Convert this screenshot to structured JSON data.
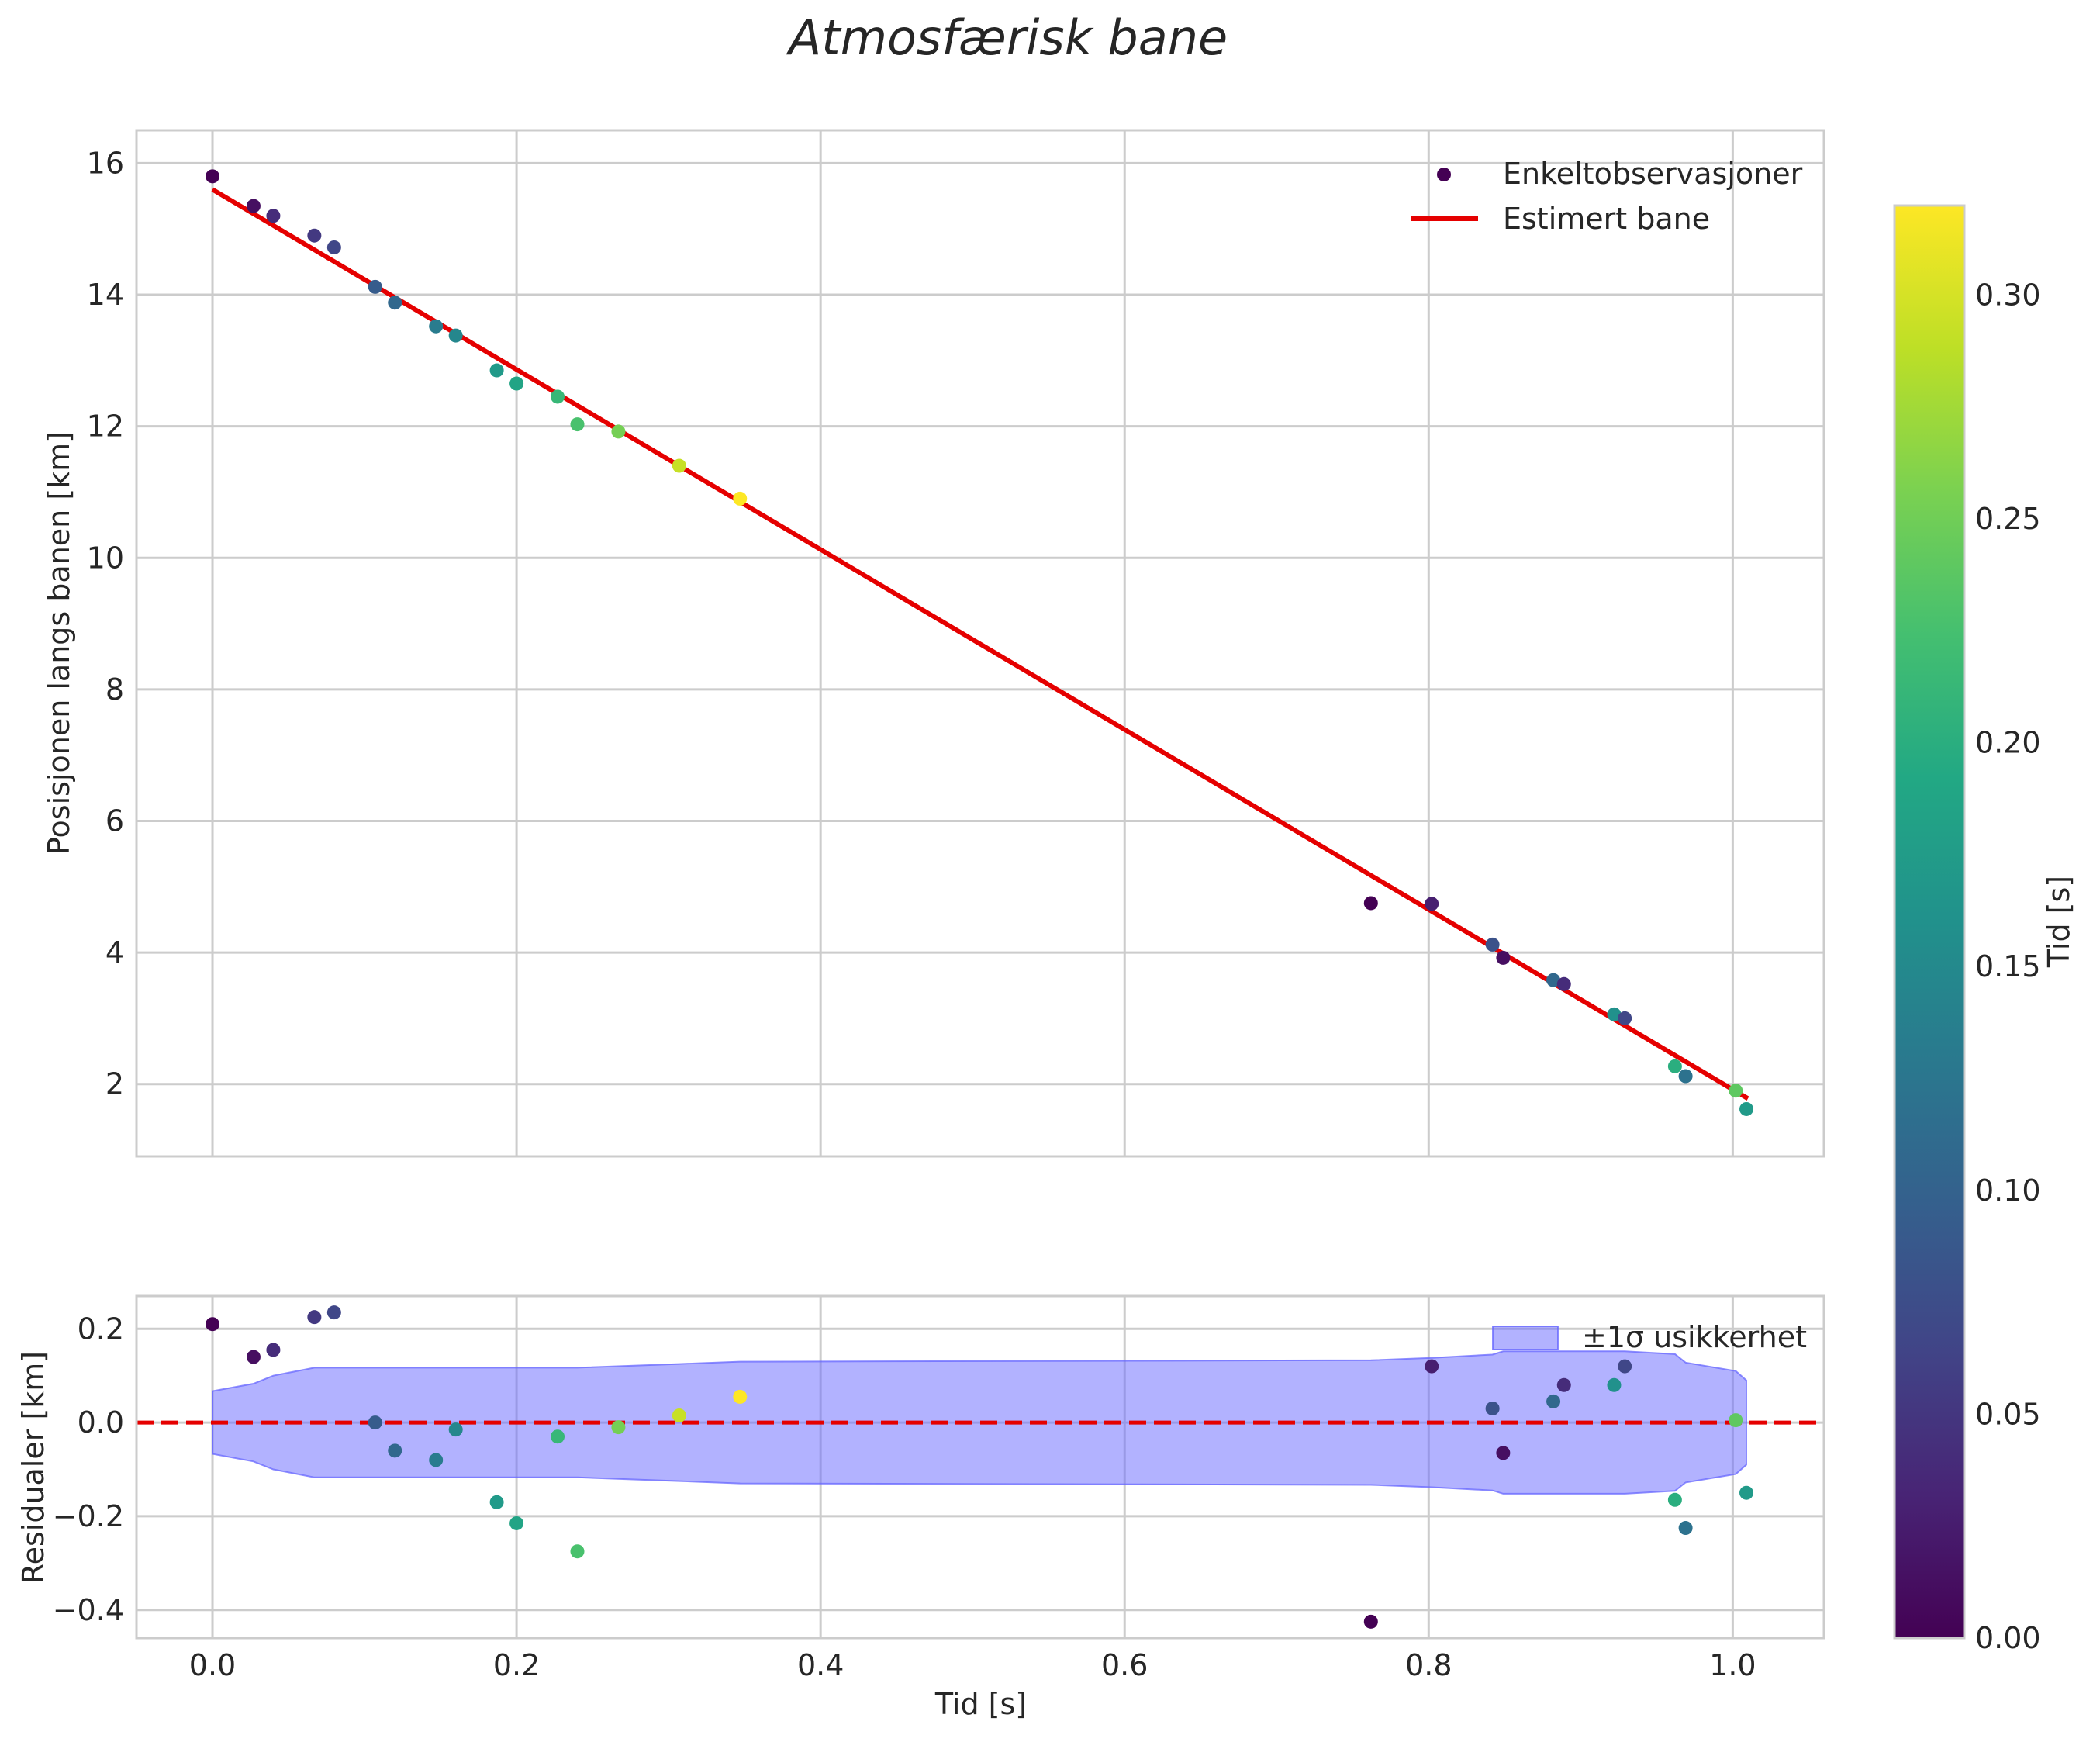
{
  "chart_data": {
    "type": "scatter",
    "title": "Atmosfærisk bane",
    "panels": {
      "main": {
        "ylabel": "Posisjonen langs banen [km]",
        "xlim": [
          -0.05,
          1.06
        ],
        "ylim": [
          0.9,
          16.5
        ],
        "yticks": [
          2,
          4,
          6,
          8,
          10,
          12,
          14,
          16
        ],
        "legend": {
          "position": "top-right",
          "scatter_label": "Enkeltobservasjoner",
          "line_label": "Estimert bane"
        },
        "fit_line": {
          "color": "#e50000",
          "x": [
            0.0,
            1.01
          ],
          "y": [
            15.6,
            1.78
          ]
        },
        "points": [
          {
            "t": 0.0,
            "pos": 15.8,
            "c": 0.0
          },
          {
            "t": 0.027,
            "pos": 15.35,
            "c": 0.013
          },
          {
            "t": 0.04,
            "pos": 15.2,
            "c": 0.04
          },
          {
            "t": 0.067,
            "pos": 14.9,
            "c": 0.053
          },
          {
            "t": 0.08,
            "pos": 14.72,
            "c": 0.067
          },
          {
            "t": 0.107,
            "pos": 14.12,
            "c": 0.093
          },
          {
            "t": 0.12,
            "pos": 13.88,
            "c": 0.107
          },
          {
            "t": 0.147,
            "pos": 13.52,
            "c": 0.133
          },
          {
            "t": 0.16,
            "pos": 13.38,
            "c": 0.147
          },
          {
            "t": 0.187,
            "pos": 12.85,
            "c": 0.173
          },
          {
            "t": 0.2,
            "pos": 12.65,
            "c": 0.187
          },
          {
            "t": 0.227,
            "pos": 12.45,
            "c": 0.213
          },
          {
            "t": 0.24,
            "pos": 12.03,
            "c": 0.227
          },
          {
            "t": 0.267,
            "pos": 11.92,
            "c": 0.253
          },
          {
            "t": 0.307,
            "pos": 11.4,
            "c": 0.293
          },
          {
            "t": 0.347,
            "pos": 10.9,
            "c": 0.32
          },
          {
            "t": 0.762,
            "pos": 4.75,
            "c": 0.0
          },
          {
            "t": 0.802,
            "pos": 4.74,
            "c": 0.027
          },
          {
            "t": 0.842,
            "pos": 4.12,
            "c": 0.08
          },
          {
            "t": 0.849,
            "pos": 3.92,
            "c": 0.013
          },
          {
            "t": 0.882,
            "pos": 3.58,
            "c": 0.107
          },
          {
            "t": 0.889,
            "pos": 3.52,
            "c": 0.04
          },
          {
            "t": 0.922,
            "pos": 3.06,
            "c": 0.16
          },
          {
            "t": 0.929,
            "pos": 3.0,
            "c": 0.067
          },
          {
            "t": 0.962,
            "pos": 2.27,
            "c": 0.2
          },
          {
            "t": 0.969,
            "pos": 2.12,
            "c": 0.12
          },
          {
            "t": 1.002,
            "pos": 1.9,
            "c": 0.24
          },
          {
            "t": 1.009,
            "pos": 1.62,
            "c": 0.173
          }
        ]
      },
      "residual": {
        "ylabel": "Residualer [km]",
        "xlabel": "Tid [s]",
        "xlim": [
          -0.05,
          1.06
        ],
        "ylim": [
          -0.46,
          0.27
        ],
        "yticks": [
          -0.4,
          -0.2,
          0.0,
          0.2
        ],
        "ytick_labels": [
          "−0.4",
          "−0.2",
          "0.0",
          "0.2"
        ],
        "xticks": [
          0.0,
          0.2,
          0.4,
          0.6,
          0.8,
          1.0
        ],
        "xtick_labels": [
          "0.0",
          "0.2",
          "0.4",
          "0.6",
          "0.8",
          "1.0"
        ],
        "zero_line_color": "#e50000",
        "legend": {
          "position": "top-right",
          "band_label": "±1σ usikkerhet"
        },
        "band": {
          "color": "#6666ff",
          "t": [
            0.0,
            0.027,
            0.04,
            0.067,
            0.24,
            0.307,
            0.347,
            0.762,
            0.802,
            0.842,
            0.849,
            0.882,
            0.929,
            0.962,
            0.969,
            1.002,
            1.009
          ],
          "sigma": [
            0.067,
            0.083,
            0.1,
            0.117,
            0.117,
            0.125,
            0.13,
            0.133,
            0.138,
            0.145,
            0.152,
            0.152,
            0.152,
            0.146,
            0.128,
            0.11,
            0.09
          ]
        },
        "points": [
          {
            "t": 0.0,
            "r": 0.21,
            "c": 0.0
          },
          {
            "t": 0.027,
            "r": 0.14,
            "c": 0.013
          },
          {
            "t": 0.04,
            "r": 0.155,
            "c": 0.04
          },
          {
            "t": 0.067,
            "r": 0.225,
            "c": 0.053
          },
          {
            "t": 0.08,
            "r": 0.235,
            "c": 0.067
          },
          {
            "t": 0.107,
            "r": 0.0,
            "c": 0.093
          },
          {
            "t": 0.12,
            "r": -0.06,
            "c": 0.107
          },
          {
            "t": 0.147,
            "r": -0.08,
            "c": 0.133
          },
          {
            "t": 0.16,
            "r": -0.015,
            "c": 0.147
          },
          {
            "t": 0.187,
            "r": -0.17,
            "c": 0.173
          },
          {
            "t": 0.2,
            "r": -0.215,
            "c": 0.187
          },
          {
            "t": 0.227,
            "r": -0.03,
            "c": 0.213
          },
          {
            "t": 0.24,
            "r": -0.275,
            "c": 0.227
          },
          {
            "t": 0.267,
            "r": -0.01,
            "c": 0.253
          },
          {
            "t": 0.307,
            "r": 0.015,
            "c": 0.293
          },
          {
            "t": 0.347,
            "r": 0.055,
            "c": 0.32
          },
          {
            "t": 0.762,
            "r": -0.425,
            "c": 0.0
          },
          {
            "t": 0.802,
            "r": 0.12,
            "c": 0.027
          },
          {
            "t": 0.842,
            "r": 0.03,
            "c": 0.08
          },
          {
            "t": 0.849,
            "r": -0.065,
            "c": 0.013
          },
          {
            "t": 0.882,
            "r": 0.045,
            "c": 0.107
          },
          {
            "t": 0.889,
            "r": 0.08,
            "c": 0.04
          },
          {
            "t": 0.922,
            "r": 0.08,
            "c": 0.16
          },
          {
            "t": 0.929,
            "r": 0.12,
            "c": 0.067
          },
          {
            "t": 0.962,
            "r": -0.165,
            "c": 0.2
          },
          {
            "t": 0.969,
            "r": -0.225,
            "c": 0.12
          },
          {
            "t": 1.002,
            "r": 0.005,
            "c": 0.24
          },
          {
            "t": 1.009,
            "r": -0.15,
            "c": 0.173
          }
        ]
      }
    },
    "colorbar": {
      "label": "Tid [s]",
      "colormap": "viridis",
      "range": [
        0.0,
        0.32
      ],
      "ticks": [
        0.0,
        0.05,
        0.1,
        0.15,
        0.2,
        0.25,
        0.3
      ],
      "tick_labels": [
        "0.00",
        "0.05",
        "0.10",
        "0.15",
        "0.20",
        "0.25",
        "0.30"
      ]
    }
  }
}
